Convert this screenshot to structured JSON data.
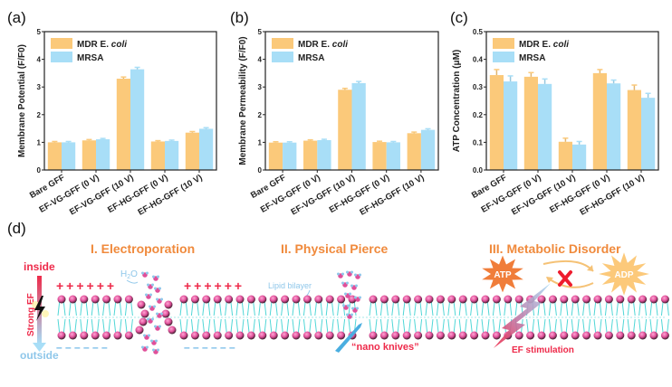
{
  "panels": {
    "a": "(a)",
    "b": "(b)",
    "c": "(c)",
    "d": "(d)"
  },
  "colors": {
    "ecoli": "#fbc97a",
    "mrsa": "#a8def7",
    "orange_title": "#f08a3c",
    "red_text": "#ee2a4a",
    "blue_text": "#8fc7ea",
    "lipid_head": "#e0509a",
    "lipid_tail": "#4fd6d6"
  },
  "chart_data": [
    {
      "type": "bar",
      "panel": "(a)",
      "title": "",
      "xlabel": "",
      "ylabel": "Membrane Potential (F/F0)",
      "ylim": [
        0,
        5
      ],
      "yticks": [
        "0",
        "1",
        "2",
        "3",
        "4",
        "5"
      ],
      "categories": [
        "Bare GFF",
        "EF-VG-GFF (0 V)",
        "EF-VG-GFF (10 V)",
        "EF-HG-GFF (0 V)",
        "EF-HG-GFF (10 V)"
      ],
      "series": [
        {
          "name": "MDR E. coli",
          "values": [
            1.0,
            1.07,
            3.3,
            1.03,
            1.35
          ],
          "errors": [
            0.03,
            0.03,
            0.06,
            0.03,
            0.04
          ]
        },
        {
          "name": "MRSA",
          "values": [
            1.0,
            1.11,
            3.64,
            1.05,
            1.49
          ],
          "errors": [
            0.03,
            0.03,
            0.07,
            0.03,
            0.04
          ]
        }
      ],
      "legend": "top-left",
      "grid": false
    },
    {
      "type": "bar",
      "panel": "(b)",
      "title": "",
      "xlabel": "",
      "ylabel": "Membrane Permeability (F/F0)",
      "ylim": [
        0,
        5
      ],
      "yticks": [
        "0",
        "1",
        "2",
        "3",
        "4",
        "5"
      ],
      "categories": [
        "Bare GFF",
        "EF-VG-GFF (0 V)",
        "EF-VG-GFF (10 V)",
        "EF-HG-GFF (0 V)",
        "EF-HG-GFF (10 V)"
      ],
      "series": [
        {
          "name": "MDR E. coli",
          "values": [
            0.99,
            1.06,
            2.9,
            1.01,
            1.33
          ],
          "errors": [
            0.03,
            0.03,
            0.05,
            0.03,
            0.04
          ]
        },
        {
          "name": "MRSA",
          "values": [
            0.99,
            1.08,
            3.14,
            1.0,
            1.45
          ],
          "errors": [
            0.03,
            0.03,
            0.06,
            0.03,
            0.04
          ]
        }
      ],
      "legend": "top-left",
      "grid": false
    },
    {
      "type": "bar",
      "panel": "(c)",
      "title": "",
      "xlabel": "",
      "ylabel": "ATP Concentration (μM)",
      "ylim": [
        0,
        0.5
      ],
      "yticks": [
        "0.0",
        "0.1",
        "0.2",
        "0.3",
        "0.4",
        "0.5"
      ],
      "categories": [
        "Bare GFF",
        "EF-VG-GFF (0 V)",
        "EF-VG-GFF (10 V)",
        "EF-HG-GFF (0 V)",
        "EF-HG-GFF (10 V)"
      ],
      "series": [
        {
          "name": "MDR E. coli",
          "values": [
            0.343,
            0.337,
            0.102,
            0.35,
            0.289
          ],
          "errors": [
            0.02,
            0.015,
            0.013,
            0.013,
            0.018
          ]
        },
        {
          "name": "MRSA",
          "values": [
            0.32,
            0.311,
            0.092,
            0.313,
            0.261
          ],
          "errors": [
            0.02,
            0.018,
            0.011,
            0.012,
            0.016
          ]
        }
      ],
      "legend": "top-left",
      "grid": false
    }
  ],
  "diagram": {
    "sections": [
      {
        "title": "I.  Electroporation"
      },
      {
        "title": "II.  Physical Pierce"
      },
      {
        "title": "III. Metabolic Disorder"
      }
    ],
    "labels": {
      "inside": "inside",
      "outside": "outside",
      "strong_ef": "Strong EF",
      "h2o": "H",
      "h2o_sub": "2",
      "h2o_o": "O",
      "lipid_bilayer": "Lipid bilayer",
      "nano_knives": "“nano knives”",
      "atp": "ATP",
      "adp": "ADP",
      "ef_stimulation": "EF stimulation",
      "plus_signs": "++++++",
      "minus_signs": "– – – – – –"
    }
  }
}
